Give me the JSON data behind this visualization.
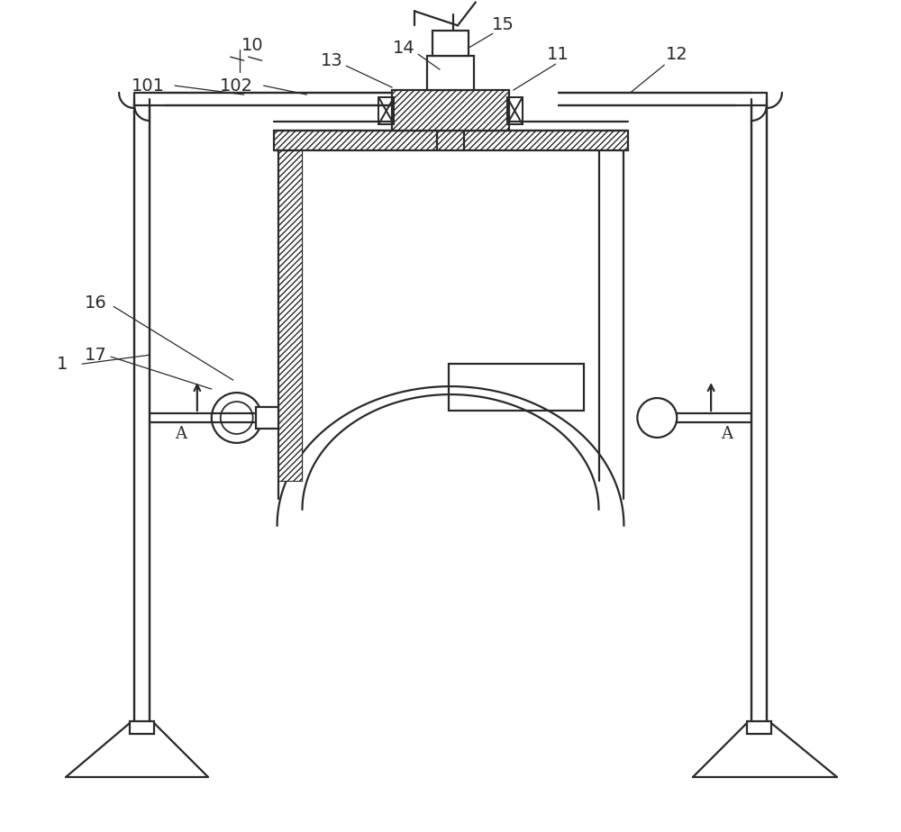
{
  "bg_color": "#ffffff",
  "line_color": "#2a2a2a",
  "lw": 1.6
}
